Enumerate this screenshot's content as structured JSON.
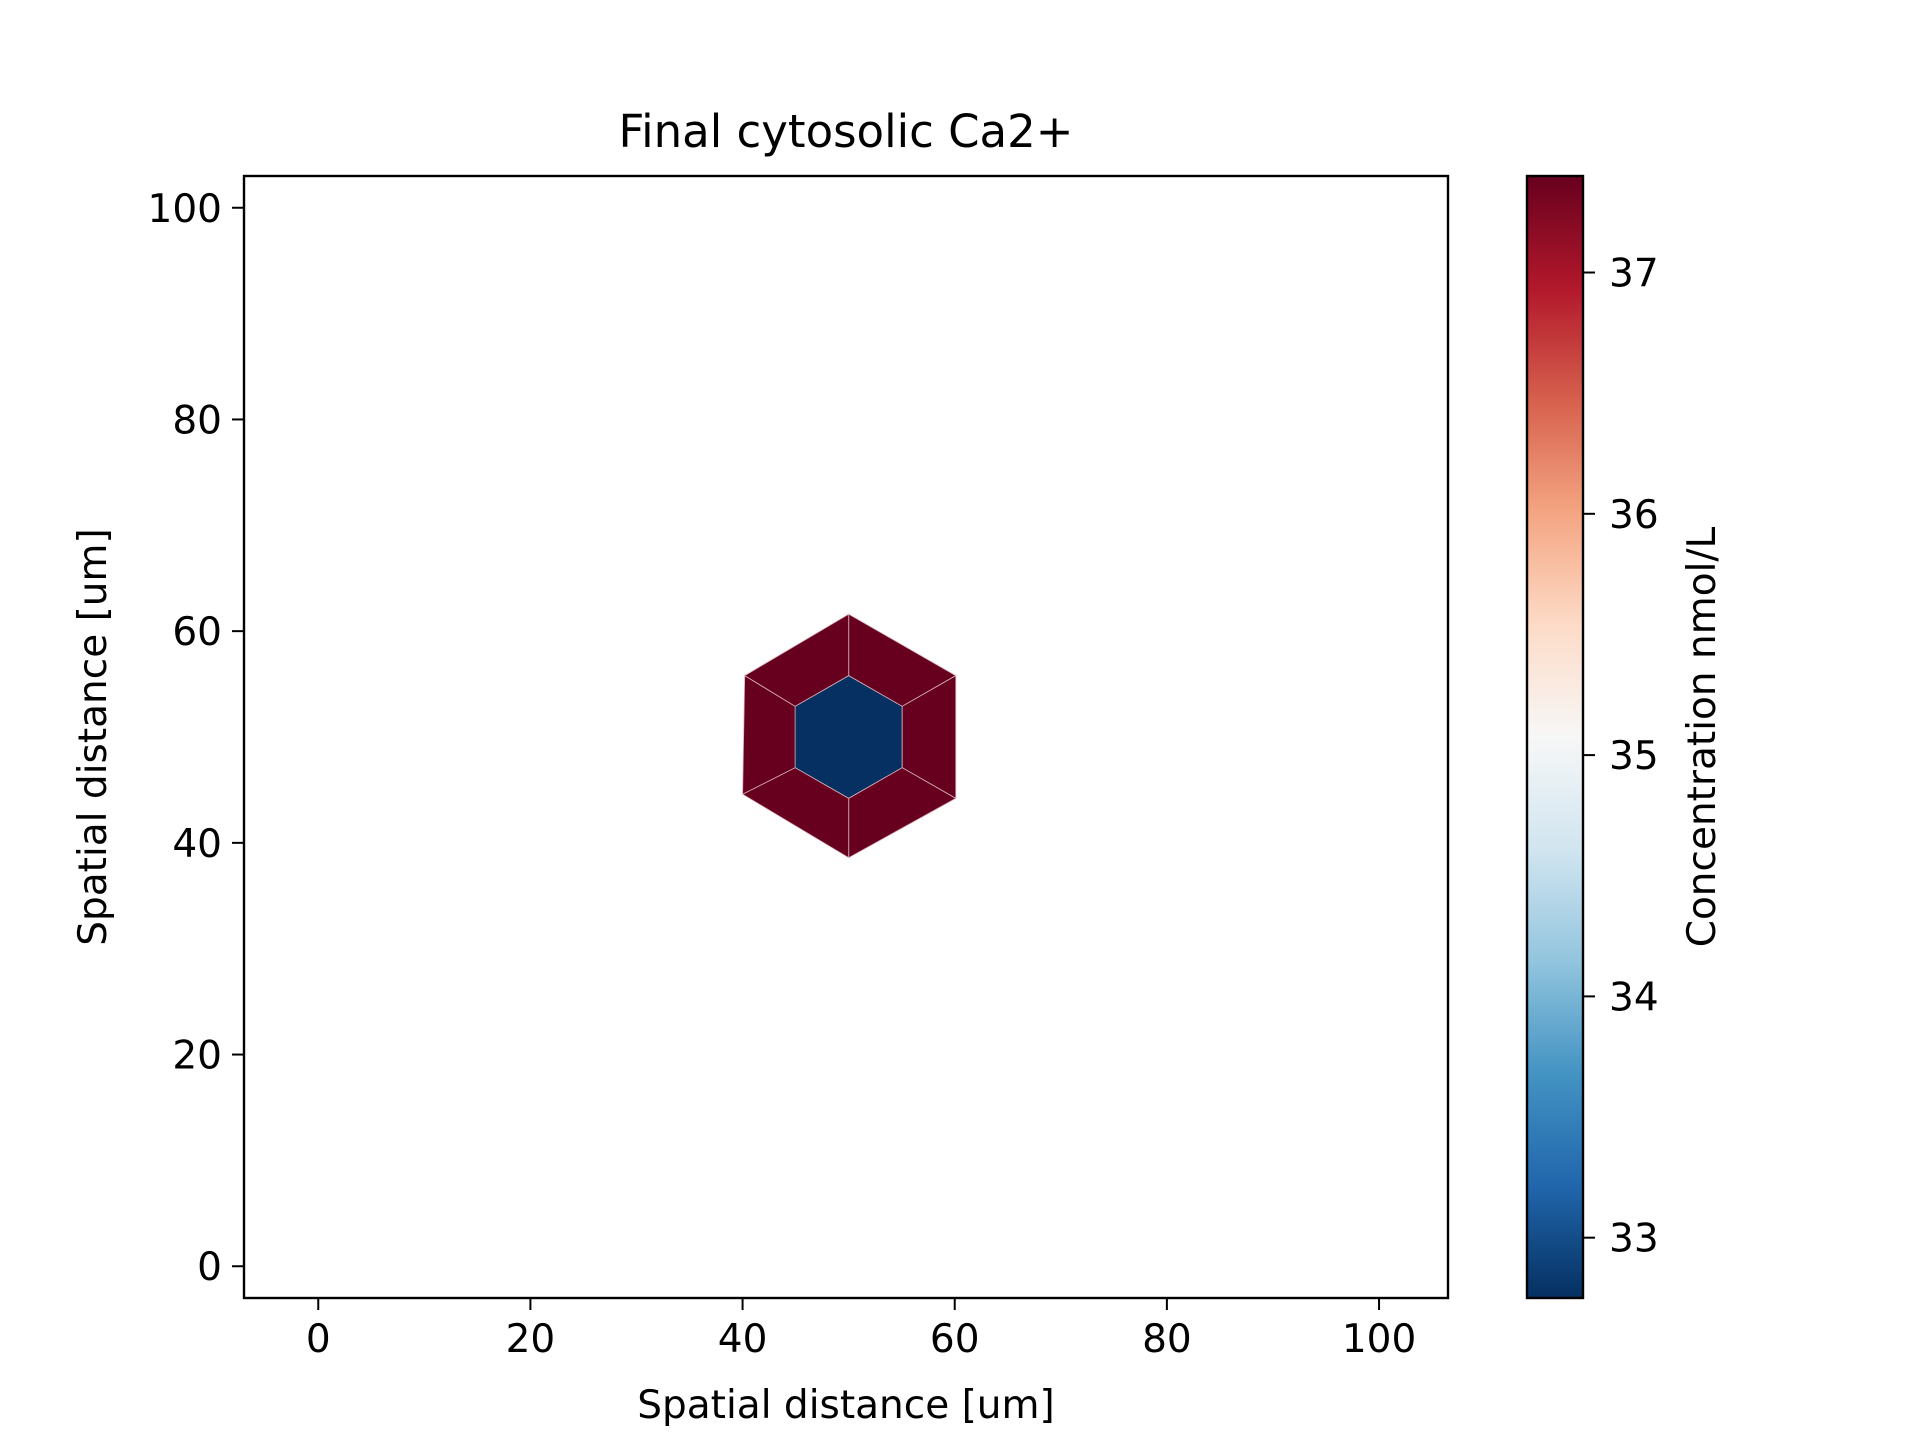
{
  "chart_data": {
    "type": "heatmap",
    "title": "Final cytosolic Ca2+",
    "xlabel": "Spatial distance [um]",
    "ylabel": "Spatial distance [um]",
    "xlim": [
      -7,
      106.5
    ],
    "ylim": [
      -3,
      103
    ],
    "xticks": [
      0,
      20,
      40,
      60,
      80,
      100
    ],
    "yticks": [
      0,
      20,
      40,
      60,
      80,
      100
    ],
    "grid": false,
    "cells": [
      {
        "name": "center",
        "value": 32.75,
        "polygon": [
          [
            50,
            55.8
          ],
          [
            55.05,
            52.9
          ],
          [
            55.05,
            47.1
          ],
          [
            50,
            44.2
          ],
          [
            44.95,
            47.1
          ],
          [
            44.95,
            52.9
          ]
        ]
      },
      {
        "name": "ring-top-right",
        "value": 37.4,
        "polygon": [
          [
            50,
            55.8
          ],
          [
            50,
            61.6
          ],
          [
            60.1,
            55.8
          ],
          [
            55.05,
            52.9
          ]
        ]
      },
      {
        "name": "ring-right",
        "value": 37.4,
        "polygon": [
          [
            55.05,
            52.9
          ],
          [
            60.1,
            55.8
          ],
          [
            60.1,
            44.2
          ],
          [
            55.05,
            47.1
          ]
        ]
      },
      {
        "name": "ring-bottom-right",
        "value": 37.4,
        "polygon": [
          [
            55.05,
            47.1
          ],
          [
            60.1,
            44.2
          ],
          [
            50,
            38.6
          ],
          [
            50,
            44.2
          ]
        ]
      },
      {
        "name": "ring-bottom-left",
        "value": 37.4,
        "polygon": [
          [
            50,
            44.2
          ],
          [
            50,
            38.6
          ],
          [
            40,
            44.6
          ],
          [
            44.95,
            47.1
          ]
        ]
      },
      {
        "name": "ring-left",
        "value": 37.4,
        "polygon": [
          [
            44.95,
            47.1
          ],
          [
            40,
            44.6
          ],
          [
            40.2,
            55.8
          ],
          [
            44.95,
            52.9
          ]
        ]
      },
      {
        "name": "ring-top-left",
        "value": 37.4,
        "polygon": [
          [
            44.95,
            52.9
          ],
          [
            40.2,
            55.8
          ],
          [
            50,
            61.6
          ],
          [
            50,
            55.8
          ]
        ]
      }
    ],
    "colorbar": {
      "label": "Concentration nmol/L",
      "colormap": "RdBu_r",
      "vmin": 32.75,
      "vmax": 37.4,
      "ticks": [
        33,
        34,
        35,
        36,
        37
      ],
      "colors": [
        "#053061",
        "#2166ac",
        "#4393c3",
        "#92c5de",
        "#d1e5f0",
        "#f7f7f7",
        "#fddbc7",
        "#f4a582",
        "#d6604d",
        "#b2182b",
        "#67001f"
      ]
    }
  }
}
